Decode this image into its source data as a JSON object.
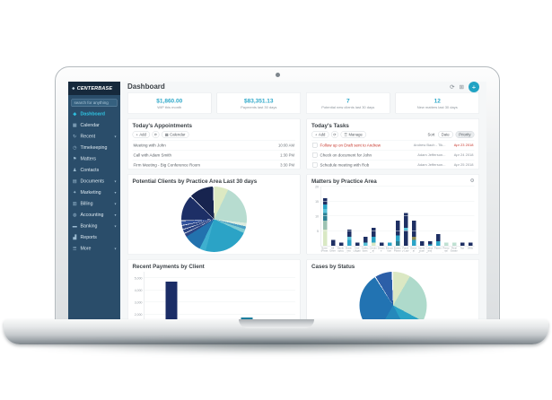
{
  "app": {
    "logo": "CENTERBASE",
    "search_placeholder": "search for anything",
    "sidebar": {
      "items": [
        {
          "label": "Dashboard",
          "icon": "dashboard-icon",
          "glyph": "◈",
          "active": true,
          "chevron": false
        },
        {
          "label": "Calendar",
          "icon": "calendar-icon",
          "glyph": "▦",
          "active": false,
          "chevron": false
        },
        {
          "label": "Recent",
          "icon": "recent-icon",
          "glyph": "↻",
          "active": false,
          "chevron": true
        },
        {
          "label": "Timekeeping",
          "icon": "timekeeping-icon",
          "glyph": "◷",
          "active": false,
          "chevron": false
        },
        {
          "label": "Matters",
          "icon": "matters-icon",
          "glyph": "⚑",
          "active": false,
          "chevron": false
        },
        {
          "label": "Contacts",
          "icon": "contacts-icon",
          "glyph": "♟",
          "active": false,
          "chevron": false
        },
        {
          "label": "Documents",
          "icon": "documents-icon",
          "glyph": "▤",
          "active": false,
          "chevron": true
        },
        {
          "label": "Marketing",
          "icon": "marketing-icon",
          "glyph": "✦",
          "active": false,
          "chevron": true
        },
        {
          "label": "Billing",
          "icon": "billing-icon",
          "glyph": "▥",
          "active": false,
          "chevron": true
        },
        {
          "label": "Accounting",
          "icon": "accounting-icon",
          "glyph": "◍",
          "active": false,
          "chevron": true
        },
        {
          "label": "Banking",
          "icon": "banking-icon",
          "glyph": "▬",
          "active": false,
          "chevron": true
        },
        {
          "label": "Reports",
          "icon": "reports-icon",
          "glyph": "▟",
          "active": false,
          "chevron": false
        },
        {
          "label": "More",
          "icon": "more-icon",
          "glyph": "☰",
          "active": false,
          "chevron": true
        }
      ]
    },
    "header": {
      "title": "Dashboard",
      "refresh_glyph": "⟳",
      "apps_glyph": "⊞",
      "add_glyph": "+"
    },
    "kpis": [
      {
        "value": "$1,860.00",
        "label": "WIP this month"
      },
      {
        "value": "$83,351.13",
        "label": "Payments last 30 days"
      },
      {
        "value": "7",
        "label": "Potential new clients last 30 days"
      },
      {
        "value": "12",
        "label": "New matters last 30 days"
      }
    ],
    "appointments": {
      "title": "Today's Appointments",
      "toolbar": {
        "add": "Add",
        "add_glyph": "+",
        "refresh_glyph": "⟳",
        "calendar": "Calendar",
        "calendar_glyph": "▦"
      },
      "rows": [
        {
          "text": "Meeting with John",
          "time": "10:00 AM"
        },
        {
          "text": "Call with Adam Smith",
          "time": "1:30 PM"
        },
        {
          "text": "Firm Meeting - Big Conference Room",
          "time": "3:30 PM"
        }
      ]
    },
    "tasks": {
      "title": "Today's Tasks",
      "toolbar": {
        "add": "Add",
        "add_glyph": "+",
        "refresh_glyph": "⟳",
        "manage": "Manage",
        "manage_glyph": "☰",
        "sort": "Sort",
        "date": "Date",
        "priority": "Priority"
      },
      "rows": [
        {
          "text": "Follow up on Draft sent to Andrew",
          "assignee": "Andrew Bach - Tik...",
          "date": "Apr 23 2018",
          "overdue": true
        },
        {
          "text": "Check on document for John",
          "assignee": "Adam Jefferson...",
          "date": "Apr 24 2018",
          "overdue": false
        },
        {
          "text": "Schedule meeting with Rob",
          "assignee": "Adam Jefferson...",
          "date": "Apr 25 2018",
          "overdue": false
        }
      ]
    },
    "accent_colors": {
      "teal": "#2da8c9",
      "sidebar": "#2a4d6a",
      "active_link": "#2fc4e3",
      "overdue_red": "#c8372d"
    }
  },
  "chart_data": [
    {
      "type": "pie",
      "title": "Potential Clients by Practice Area Last 30 days",
      "legend_position": "none",
      "slices": [
        {
          "color": "#dce9c2",
          "value": 25
        },
        {
          "color": "#b7dcd0",
          "value": 70
        },
        {
          "color": "#dcecdf",
          "value": 6
        },
        {
          "color": "#4a9fc4",
          "value": 5
        },
        {
          "color": "#7ecbd4",
          "value": 7
        },
        {
          "color": "#2ba3c6",
          "value": 79
        },
        {
          "color": "#3eafcf",
          "value": 11
        },
        {
          "color": "#2272ae",
          "value": 31
        },
        {
          "color": "#2c4585",
          "value": 6
        },
        {
          "color": "#ffffff",
          "value": 1.2
        },
        {
          "color": "#2c4585",
          "value": 6
        },
        {
          "color": "#ffffff",
          "value": 1.2
        },
        {
          "color": "#2c4585",
          "value": 6
        },
        {
          "color": "#ffffff",
          "value": 1.2
        },
        {
          "color": "#33539c",
          "value": 7
        },
        {
          "color": "#ffffff",
          "value": 1.2
        },
        {
          "color": "#1d2f66",
          "value": 45
        },
        {
          "color": "#ffffff",
          "value": 1.5
        },
        {
          "color": "#17244f",
          "value": 42
        },
        {
          "color": "#ffffff",
          "value": 2
        }
      ]
    },
    {
      "type": "bar",
      "stacked": true,
      "title": "Matters by Practice Area",
      "ylim": [
        0,
        20
      ],
      "yticks": [
        5,
        10,
        15,
        20
      ],
      "grid": true,
      "categories": [
        "None (Please Select)",
        "All Other",
        "Bankruptcy",
        "Business Litigation",
        "Civil Litigation",
        "Collections",
        "Criminal Defense",
        "Divorce",
        "Education",
        "Estate Planning",
        "Family Law",
        "General Injury",
        "Intellectual Property",
        "Labor and Employment",
        "Patent",
        "Personal Injury",
        "Real Estate",
        "Tax",
        "Wills"
      ],
      "bars": [
        [
          {
            "c": "#d9e8c4",
            "v": 5.5
          },
          {
            "c": "#9dc3b2",
            "v": 3
          },
          {
            "c": "#2b7f93",
            "v": 2.5
          },
          {
            "c": "#59c2d8",
            "v": 1.5
          },
          {
            "c": "#2ba4c7",
            "v": 1.5
          },
          {
            "c": "#1e2f63",
            "v": 2
          }
        ],
        [
          {
            "c": "#1e2f63",
            "v": 2
          }
        ],
        [
          {
            "c": "#1e2f63",
            "v": 1
          }
        ],
        [
          {
            "c": "#2ba4c7",
            "v": 2
          },
          {
            "c": "#59c2d8",
            "v": 1
          },
          {
            "c": "#1e2f63",
            "v": 2.5
          }
        ],
        [
          {
            "c": "#1e2f63",
            "v": 1
          }
        ],
        [
          {
            "c": "#59c2d8",
            "v": 1
          },
          {
            "c": "#1e2f63",
            "v": 2
          }
        ],
        [
          {
            "c": "#d9e8c4",
            "v": 1
          },
          {
            "c": "#2ba4c7",
            "v": 2
          },
          {
            "c": "#1e2f63",
            "v": 3
          }
        ],
        [
          {
            "c": "#1e2f63",
            "v": 1
          }
        ],
        [
          {
            "c": "#2ba4c7",
            "v": 1
          }
        ],
        [
          {
            "c": "#2b7f93",
            "v": 1.5
          },
          {
            "c": "#2ba4c7",
            "v": 2
          },
          {
            "c": "#1e2f63",
            "v": 5
          }
        ],
        [
          {
            "c": "#1e2f63",
            "v": 5
          },
          {
            "c": "#59c2d8",
            "v": 1
          },
          {
            "c": "#1e2f63",
            "v": 5
          }
        ],
        [
          {
            "c": "#2ba4c7",
            "v": 2
          },
          {
            "c": "#8c8a55",
            "v": 1
          },
          {
            "c": "#1e2f63",
            "v": 5.5
          }
        ],
        [
          {
            "c": "#1e2f63",
            "v": 1.5
          }
        ],
        [
          {
            "c": "#2ba4c7",
            "v": 0.5
          },
          {
            "c": "#1e2f63",
            "v": 1
          }
        ],
        [
          {
            "c": "#2ba4c7",
            "v": 1.5
          },
          {
            "c": "#1e2f63",
            "v": 2.5
          }
        ],
        [
          {
            "c": "#bfe0d2",
            "v": 1
          }
        ],
        [
          {
            "c": "#bfe0d2",
            "v": 1
          }
        ],
        [
          {
            "c": "#1e2f63",
            "v": 1
          }
        ],
        [
          {
            "c": "#1e2f63",
            "v": 1
          }
        ]
      ]
    },
    {
      "type": "bar",
      "title": "Recent Payments by Client",
      "ylim": [
        0,
        5500
      ],
      "yticks": [
        {
          "v": 1000,
          "label": "1,000"
        },
        {
          "v": 2000,
          "label": "2,000"
        },
        {
          "v": 3000,
          "label": "3,000"
        },
        {
          "v": 4000,
          "label": "4,000"
        },
        {
          "v": 5000,
          "label": "5,000"
        }
      ],
      "grid": true,
      "bars": [
        {
          "x_pct": 14,
          "segments": [
            {
              "c": "#1b2d66",
              "v": 4700
            }
          ]
        },
        {
          "x_pct": 64,
          "segments": [
            {
              "c": "#2fa9c9",
              "v": 1350
            },
            {
              "c": "#1c7f9e",
              "v": 400
            }
          ]
        }
      ]
    },
    {
      "type": "pie",
      "title": "Cases by Status",
      "legend_position": "none",
      "slices": [
        {
          "color": "#dbe8c3",
          "value": 30
        },
        {
          "color": "#aedacb",
          "value": 88
        },
        {
          "color": "#2ba3c6",
          "value": 34
        },
        {
          "color": "#2588bb",
          "value": 58
        },
        {
          "color": "#2273b2",
          "value": 117
        },
        {
          "color": "#ffffff",
          "value": 1.5
        },
        {
          "color": "#2c5fa8",
          "value": 29
        },
        {
          "color": "#ffffff",
          "value": 2.5
        }
      ]
    }
  ]
}
